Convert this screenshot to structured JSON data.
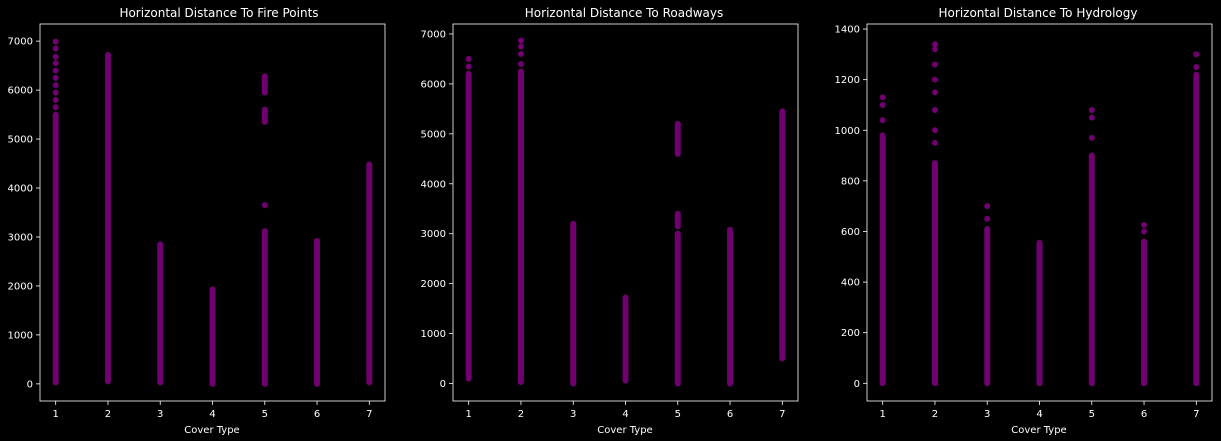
{
  "figure": {
    "background": "#000000",
    "point_color": "#800080",
    "axes_color": "#ffffff"
  },
  "chart_data": [
    {
      "type": "scatter",
      "title": "Horizontal Distance To Fire Points",
      "xlabel": "Cover Type",
      "ylabel": "",
      "x_ticks": [
        1,
        2,
        3,
        4,
        5,
        6,
        7
      ],
      "y_ticks": [
        0,
        1000,
        2000,
        3000,
        4000,
        5000,
        6000,
        7000
      ],
      "xlim": [
        0.7,
        7.3
      ],
      "ylim": [
        -350,
        7350
      ],
      "grid": false,
      "series": [
        {
          "x": 1,
          "ranges": [
            [
              30,
              5500
            ]
          ],
          "points": [
            5650,
            5800,
            5950,
            6100,
            6250,
            6400,
            6550,
            6680,
            6850,
            6990
          ]
        },
        {
          "x": 2,
          "ranges": [
            [
              50,
              6650
            ]
          ],
          "points": [
            6720
          ]
        },
        {
          "x": 3,
          "ranges": [
            [
              30,
              2850
            ]
          ],
          "points": []
        },
        {
          "x": 4,
          "ranges": [
            [
              0,
              1930
            ]
          ],
          "points": []
        },
        {
          "x": 5,
          "ranges": [
            [
              0,
              3120
            ],
            [
              5350,
              5600
            ],
            [
              5950,
              6280
            ]
          ],
          "points": [
            3650
          ]
        },
        {
          "x": 6,
          "ranges": [
            [
              0,
              2920
            ]
          ],
          "points": []
        },
        {
          "x": 7,
          "ranges": [
            [
              30,
              4480
            ]
          ],
          "points": []
        }
      ]
    },
    {
      "type": "scatter",
      "title": "Horizontal Distance To Roadways",
      "xlabel": "Cover Type",
      "ylabel": "",
      "x_ticks": [
        1,
        2,
        3,
        4,
        5,
        6,
        7
      ],
      "y_ticks": [
        0,
        1000,
        2000,
        3000,
        4000,
        5000,
        6000,
        7000
      ],
      "xlim": [
        0.7,
        7.3
      ],
      "ylim": [
        -350,
        7200
      ],
      "grid": false,
      "series": [
        {
          "x": 1,
          "ranges": [
            [
              100,
              6200
            ]
          ],
          "points": [
            6350,
            6500
          ]
        },
        {
          "x": 2,
          "ranges": [
            [
              30,
              6250
            ]
          ],
          "points": [
            6400,
            6600,
            6750,
            6870
          ]
        },
        {
          "x": 3,
          "ranges": [
            [
              0,
              3200
            ]
          ],
          "points": []
        },
        {
          "x": 4,
          "ranges": [
            [
              60,
              1720
            ]
          ],
          "points": []
        },
        {
          "x": 5,
          "ranges": [
            [
              0,
              3000
            ],
            [
              3150,
              3400
            ],
            [
              4600,
              5200
            ]
          ],
          "points": []
        },
        {
          "x": 6,
          "ranges": [
            [
              0,
              3080
            ]
          ],
          "points": []
        },
        {
          "x": 7,
          "ranges": [
            [
              500,
              5450
            ]
          ],
          "points": []
        }
      ]
    },
    {
      "type": "scatter",
      "title": "Horizontal Distance To Hydrology",
      "xlabel": "Cover Type",
      "ylabel": "",
      "x_ticks": [
        1,
        2,
        3,
        4,
        5,
        6,
        7
      ],
      "y_ticks": [
        0,
        200,
        400,
        600,
        800,
        1000,
        1200,
        1400
      ],
      "xlim": [
        0.7,
        7.3
      ],
      "ylim": [
        -70,
        1420
      ],
      "grid": false,
      "series": [
        {
          "x": 1,
          "ranges": [
            [
              0,
              980
            ]
          ],
          "points": [
            1040,
            1100,
            1130
          ]
        },
        {
          "x": 2,
          "ranges": [
            [
              0,
              870
            ]
          ],
          "points": [
            950,
            1000,
            1080,
            1150,
            1200,
            1260,
            1320,
            1340
          ]
        },
        {
          "x": 3,
          "ranges": [
            [
              0,
              610
            ]
          ],
          "points": [
            650,
            700
          ]
        },
        {
          "x": 4,
          "ranges": [
            [
              0,
              555
            ]
          ],
          "points": []
        },
        {
          "x": 5,
          "ranges": [
            [
              0,
              900
            ]
          ],
          "points": [
            970,
            1050,
            1080
          ]
        },
        {
          "x": 6,
          "ranges": [
            [
              0,
              560
            ]
          ],
          "points": [
            600,
            625
          ]
        },
        {
          "x": 7,
          "ranges": [
            [
              0,
              1220
            ]
          ],
          "points": [
            1250,
            1300
          ]
        }
      ]
    }
  ]
}
